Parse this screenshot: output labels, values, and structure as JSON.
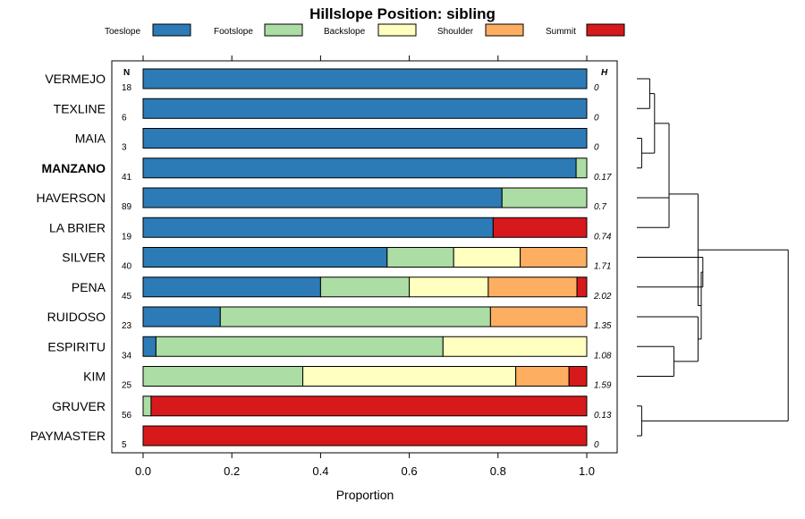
{
  "chart_data": {
    "type": "bar",
    "stacked": true,
    "orientation": "horizontal",
    "title": "Hillslope Position: sibling",
    "xlabel": "Proportion",
    "xlim": [
      0,
      1
    ],
    "x_ticks": [
      "0.0",
      "0.2",
      "0.4",
      "0.6",
      "0.8",
      "1.0"
    ],
    "n_header": "N",
    "h_header": "H",
    "legend_position": "top",
    "classes": [
      {
        "name": "Toeslope",
        "color": "#2c7bb6"
      },
      {
        "name": "Footslope",
        "color": "#abdda4"
      },
      {
        "name": "Backslope",
        "color": "#ffffbf"
      },
      {
        "name": "Shoulder",
        "color": "#fdae61"
      },
      {
        "name": "Summit",
        "color": "#d7191c"
      }
    ],
    "rows": [
      {
        "site": "VERMEJO",
        "bold": false,
        "n": "18",
        "h": "0",
        "values": [
          1.0,
          0,
          0,
          0,
          0
        ]
      },
      {
        "site": "TEXLINE",
        "bold": false,
        "n": "6",
        "h": "0",
        "values": [
          1.0,
          0,
          0,
          0,
          0
        ]
      },
      {
        "site": "MAIA",
        "bold": false,
        "n": "3",
        "h": "0",
        "values": [
          1.0,
          0,
          0,
          0,
          0
        ]
      },
      {
        "site": "MANZANO",
        "bold": true,
        "n": "41",
        "h": "0.17",
        "values": [
          0.976,
          0.024,
          0,
          0,
          0
        ]
      },
      {
        "site": "HAVERSON",
        "bold": false,
        "n": "89",
        "h": "0.7",
        "values": [
          0.809,
          0.191,
          0,
          0,
          0
        ]
      },
      {
        "site": "LA BRIER",
        "bold": false,
        "n": "19",
        "h": "0.74",
        "values": [
          0.789,
          0,
          0,
          0,
          0.211
        ]
      },
      {
        "site": "SILVER",
        "bold": false,
        "n": "40",
        "h": "1.71",
        "values": [
          0.55,
          0.15,
          0.15,
          0.15,
          0
        ]
      },
      {
        "site": "PENA",
        "bold": false,
        "n": "45",
        "h": "2.02",
        "values": [
          0.4,
          0.2,
          0.178,
          0.2,
          0.022
        ]
      },
      {
        "site": "RUIDOSO",
        "bold": false,
        "n": "23",
        "h": "1.35",
        "values": [
          0.174,
          0.609,
          0,
          0.217,
          0
        ]
      },
      {
        "site": "ESPIRITU",
        "bold": false,
        "n": "34",
        "h": "1.08",
        "values": [
          0.029,
          0.647,
          0.324,
          0,
          0
        ]
      },
      {
        "site": "KIM",
        "bold": false,
        "n": "25",
        "h": "1.59",
        "values": [
          0,
          0.36,
          0.48,
          0.12,
          0.04
        ]
      },
      {
        "site": "GRUVER",
        "bold": false,
        "n": "56",
        "h": "0.13",
        "values": [
          0,
          0.018,
          0,
          0,
          0.982
        ]
      },
      {
        "site": "PAYMASTER",
        "bold": false,
        "n": "5",
        "h": "0",
        "values": [
          0,
          0,
          0,
          0,
          1.0
        ]
      }
    ],
    "dendrogram": {
      "leaf_order": [
        "VERMEJO",
        "TEXLINE",
        "MAIA",
        "MANZANO",
        "HAVERSON",
        "LA BRIER",
        "SILVER",
        "PENA",
        "RUIDOSO",
        "ESPIRITU",
        "KIM",
        "GRUVER",
        "PAYMASTER"
      ],
      "merges": [
        {
          "a": "VERMEJO",
          "b": "TEXLINE",
          "height": 0.08
        },
        {
          "a": "MAIA",
          "b": "MANZANO",
          "height": 0.03
        },
        {
          "a": "m0",
          "b": "m1",
          "height": 0.11
        },
        {
          "a": "m2",
          "b": "HAVERSON",
          "height": 0.2
        },
        {
          "a": "m3",
          "b": "LA BRIER",
          "height": 0.2
        },
        {
          "a": "SILVER",
          "b": "PENA",
          "height": 0.41
        },
        {
          "a": "ESPIRITU",
          "b": "KIM",
          "height": 0.23
        },
        {
          "a": "RUIDOSO",
          "b": "m6",
          "height": 0.38
        },
        {
          "a": "m5",
          "b": "m7",
          "height": 0.4
        },
        {
          "a": "m4",
          "b": "m8",
          "height": 0.38
        },
        {
          "a": "GRUVER",
          "b": "PAYMASTER",
          "height": 0.03
        },
        {
          "a": "m9",
          "b": "m10",
          "height": 0.94
        }
      ]
    }
  }
}
